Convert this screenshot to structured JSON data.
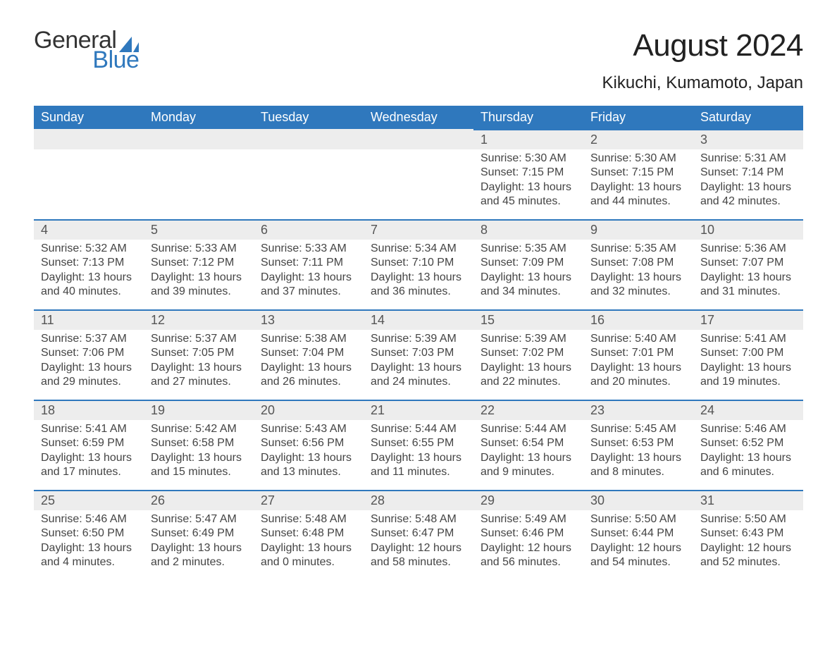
{
  "logo": {
    "word1": "General",
    "word2": "Blue",
    "word1_color": "#333333",
    "word2_color": "#2f78bd",
    "sail_color": "#2f78bd"
  },
  "header": {
    "month_title": "August 2024",
    "location": "Kikuchi, Kumamoto, Japan"
  },
  "colors": {
    "header_row_bg": "#2f78bd",
    "header_row_text": "#ffffff",
    "daynum_bg": "#ededed",
    "daynum_border_top": "#2f78bd",
    "body_text": "#444444",
    "background": "#ffffff"
  },
  "typography": {
    "month_title_fontsize": 44,
    "location_fontsize": 24,
    "weekday_fontsize": 18,
    "daynum_fontsize": 18,
    "cell_fontsize": 16
  },
  "calendar": {
    "type": "table",
    "weekday_labels": [
      "Sunday",
      "Monday",
      "Tuesday",
      "Wednesday",
      "Thursday",
      "Friday",
      "Saturday"
    ],
    "leading_blanks": 4,
    "days": [
      {
        "n": "1",
        "sunrise": "Sunrise: 5:30 AM",
        "sunset": "Sunset: 7:15 PM",
        "daylight": "Daylight: 13 hours and 45 minutes."
      },
      {
        "n": "2",
        "sunrise": "Sunrise: 5:30 AM",
        "sunset": "Sunset: 7:15 PM",
        "daylight": "Daylight: 13 hours and 44 minutes."
      },
      {
        "n": "3",
        "sunrise": "Sunrise: 5:31 AM",
        "sunset": "Sunset: 7:14 PM",
        "daylight": "Daylight: 13 hours and 42 minutes."
      },
      {
        "n": "4",
        "sunrise": "Sunrise: 5:32 AM",
        "sunset": "Sunset: 7:13 PM",
        "daylight": "Daylight: 13 hours and 40 minutes."
      },
      {
        "n": "5",
        "sunrise": "Sunrise: 5:33 AM",
        "sunset": "Sunset: 7:12 PM",
        "daylight": "Daylight: 13 hours and 39 minutes."
      },
      {
        "n": "6",
        "sunrise": "Sunrise: 5:33 AM",
        "sunset": "Sunset: 7:11 PM",
        "daylight": "Daylight: 13 hours and 37 minutes."
      },
      {
        "n": "7",
        "sunrise": "Sunrise: 5:34 AM",
        "sunset": "Sunset: 7:10 PM",
        "daylight": "Daylight: 13 hours and 36 minutes."
      },
      {
        "n": "8",
        "sunrise": "Sunrise: 5:35 AM",
        "sunset": "Sunset: 7:09 PM",
        "daylight": "Daylight: 13 hours and 34 minutes."
      },
      {
        "n": "9",
        "sunrise": "Sunrise: 5:35 AM",
        "sunset": "Sunset: 7:08 PM",
        "daylight": "Daylight: 13 hours and 32 minutes."
      },
      {
        "n": "10",
        "sunrise": "Sunrise: 5:36 AM",
        "sunset": "Sunset: 7:07 PM",
        "daylight": "Daylight: 13 hours and 31 minutes."
      },
      {
        "n": "11",
        "sunrise": "Sunrise: 5:37 AM",
        "sunset": "Sunset: 7:06 PM",
        "daylight": "Daylight: 13 hours and 29 minutes."
      },
      {
        "n": "12",
        "sunrise": "Sunrise: 5:37 AM",
        "sunset": "Sunset: 7:05 PM",
        "daylight": "Daylight: 13 hours and 27 minutes."
      },
      {
        "n": "13",
        "sunrise": "Sunrise: 5:38 AM",
        "sunset": "Sunset: 7:04 PM",
        "daylight": "Daylight: 13 hours and 26 minutes."
      },
      {
        "n": "14",
        "sunrise": "Sunrise: 5:39 AM",
        "sunset": "Sunset: 7:03 PM",
        "daylight": "Daylight: 13 hours and 24 minutes."
      },
      {
        "n": "15",
        "sunrise": "Sunrise: 5:39 AM",
        "sunset": "Sunset: 7:02 PM",
        "daylight": "Daylight: 13 hours and 22 minutes."
      },
      {
        "n": "16",
        "sunrise": "Sunrise: 5:40 AM",
        "sunset": "Sunset: 7:01 PM",
        "daylight": "Daylight: 13 hours and 20 minutes."
      },
      {
        "n": "17",
        "sunrise": "Sunrise: 5:41 AM",
        "sunset": "Sunset: 7:00 PM",
        "daylight": "Daylight: 13 hours and 19 minutes."
      },
      {
        "n": "18",
        "sunrise": "Sunrise: 5:41 AM",
        "sunset": "Sunset: 6:59 PM",
        "daylight": "Daylight: 13 hours and 17 minutes."
      },
      {
        "n": "19",
        "sunrise": "Sunrise: 5:42 AM",
        "sunset": "Sunset: 6:58 PM",
        "daylight": "Daylight: 13 hours and 15 minutes."
      },
      {
        "n": "20",
        "sunrise": "Sunrise: 5:43 AM",
        "sunset": "Sunset: 6:56 PM",
        "daylight": "Daylight: 13 hours and 13 minutes."
      },
      {
        "n": "21",
        "sunrise": "Sunrise: 5:44 AM",
        "sunset": "Sunset: 6:55 PM",
        "daylight": "Daylight: 13 hours and 11 minutes."
      },
      {
        "n": "22",
        "sunrise": "Sunrise: 5:44 AM",
        "sunset": "Sunset: 6:54 PM",
        "daylight": "Daylight: 13 hours and 9 minutes."
      },
      {
        "n": "23",
        "sunrise": "Sunrise: 5:45 AM",
        "sunset": "Sunset: 6:53 PM",
        "daylight": "Daylight: 13 hours and 8 minutes."
      },
      {
        "n": "24",
        "sunrise": "Sunrise: 5:46 AM",
        "sunset": "Sunset: 6:52 PM",
        "daylight": "Daylight: 13 hours and 6 minutes."
      },
      {
        "n": "25",
        "sunrise": "Sunrise: 5:46 AM",
        "sunset": "Sunset: 6:50 PM",
        "daylight": "Daylight: 13 hours and 4 minutes."
      },
      {
        "n": "26",
        "sunrise": "Sunrise: 5:47 AM",
        "sunset": "Sunset: 6:49 PM",
        "daylight": "Daylight: 13 hours and 2 minutes."
      },
      {
        "n": "27",
        "sunrise": "Sunrise: 5:48 AM",
        "sunset": "Sunset: 6:48 PM",
        "daylight": "Daylight: 13 hours and 0 minutes."
      },
      {
        "n": "28",
        "sunrise": "Sunrise: 5:48 AM",
        "sunset": "Sunset: 6:47 PM",
        "daylight": "Daylight: 12 hours and 58 minutes."
      },
      {
        "n": "29",
        "sunrise": "Sunrise: 5:49 AM",
        "sunset": "Sunset: 6:46 PM",
        "daylight": "Daylight: 12 hours and 56 minutes."
      },
      {
        "n": "30",
        "sunrise": "Sunrise: 5:50 AM",
        "sunset": "Sunset: 6:44 PM",
        "daylight": "Daylight: 12 hours and 54 minutes."
      },
      {
        "n": "31",
        "sunrise": "Sunrise: 5:50 AM",
        "sunset": "Sunset: 6:43 PM",
        "daylight": "Daylight: 12 hours and 52 minutes."
      }
    ]
  }
}
